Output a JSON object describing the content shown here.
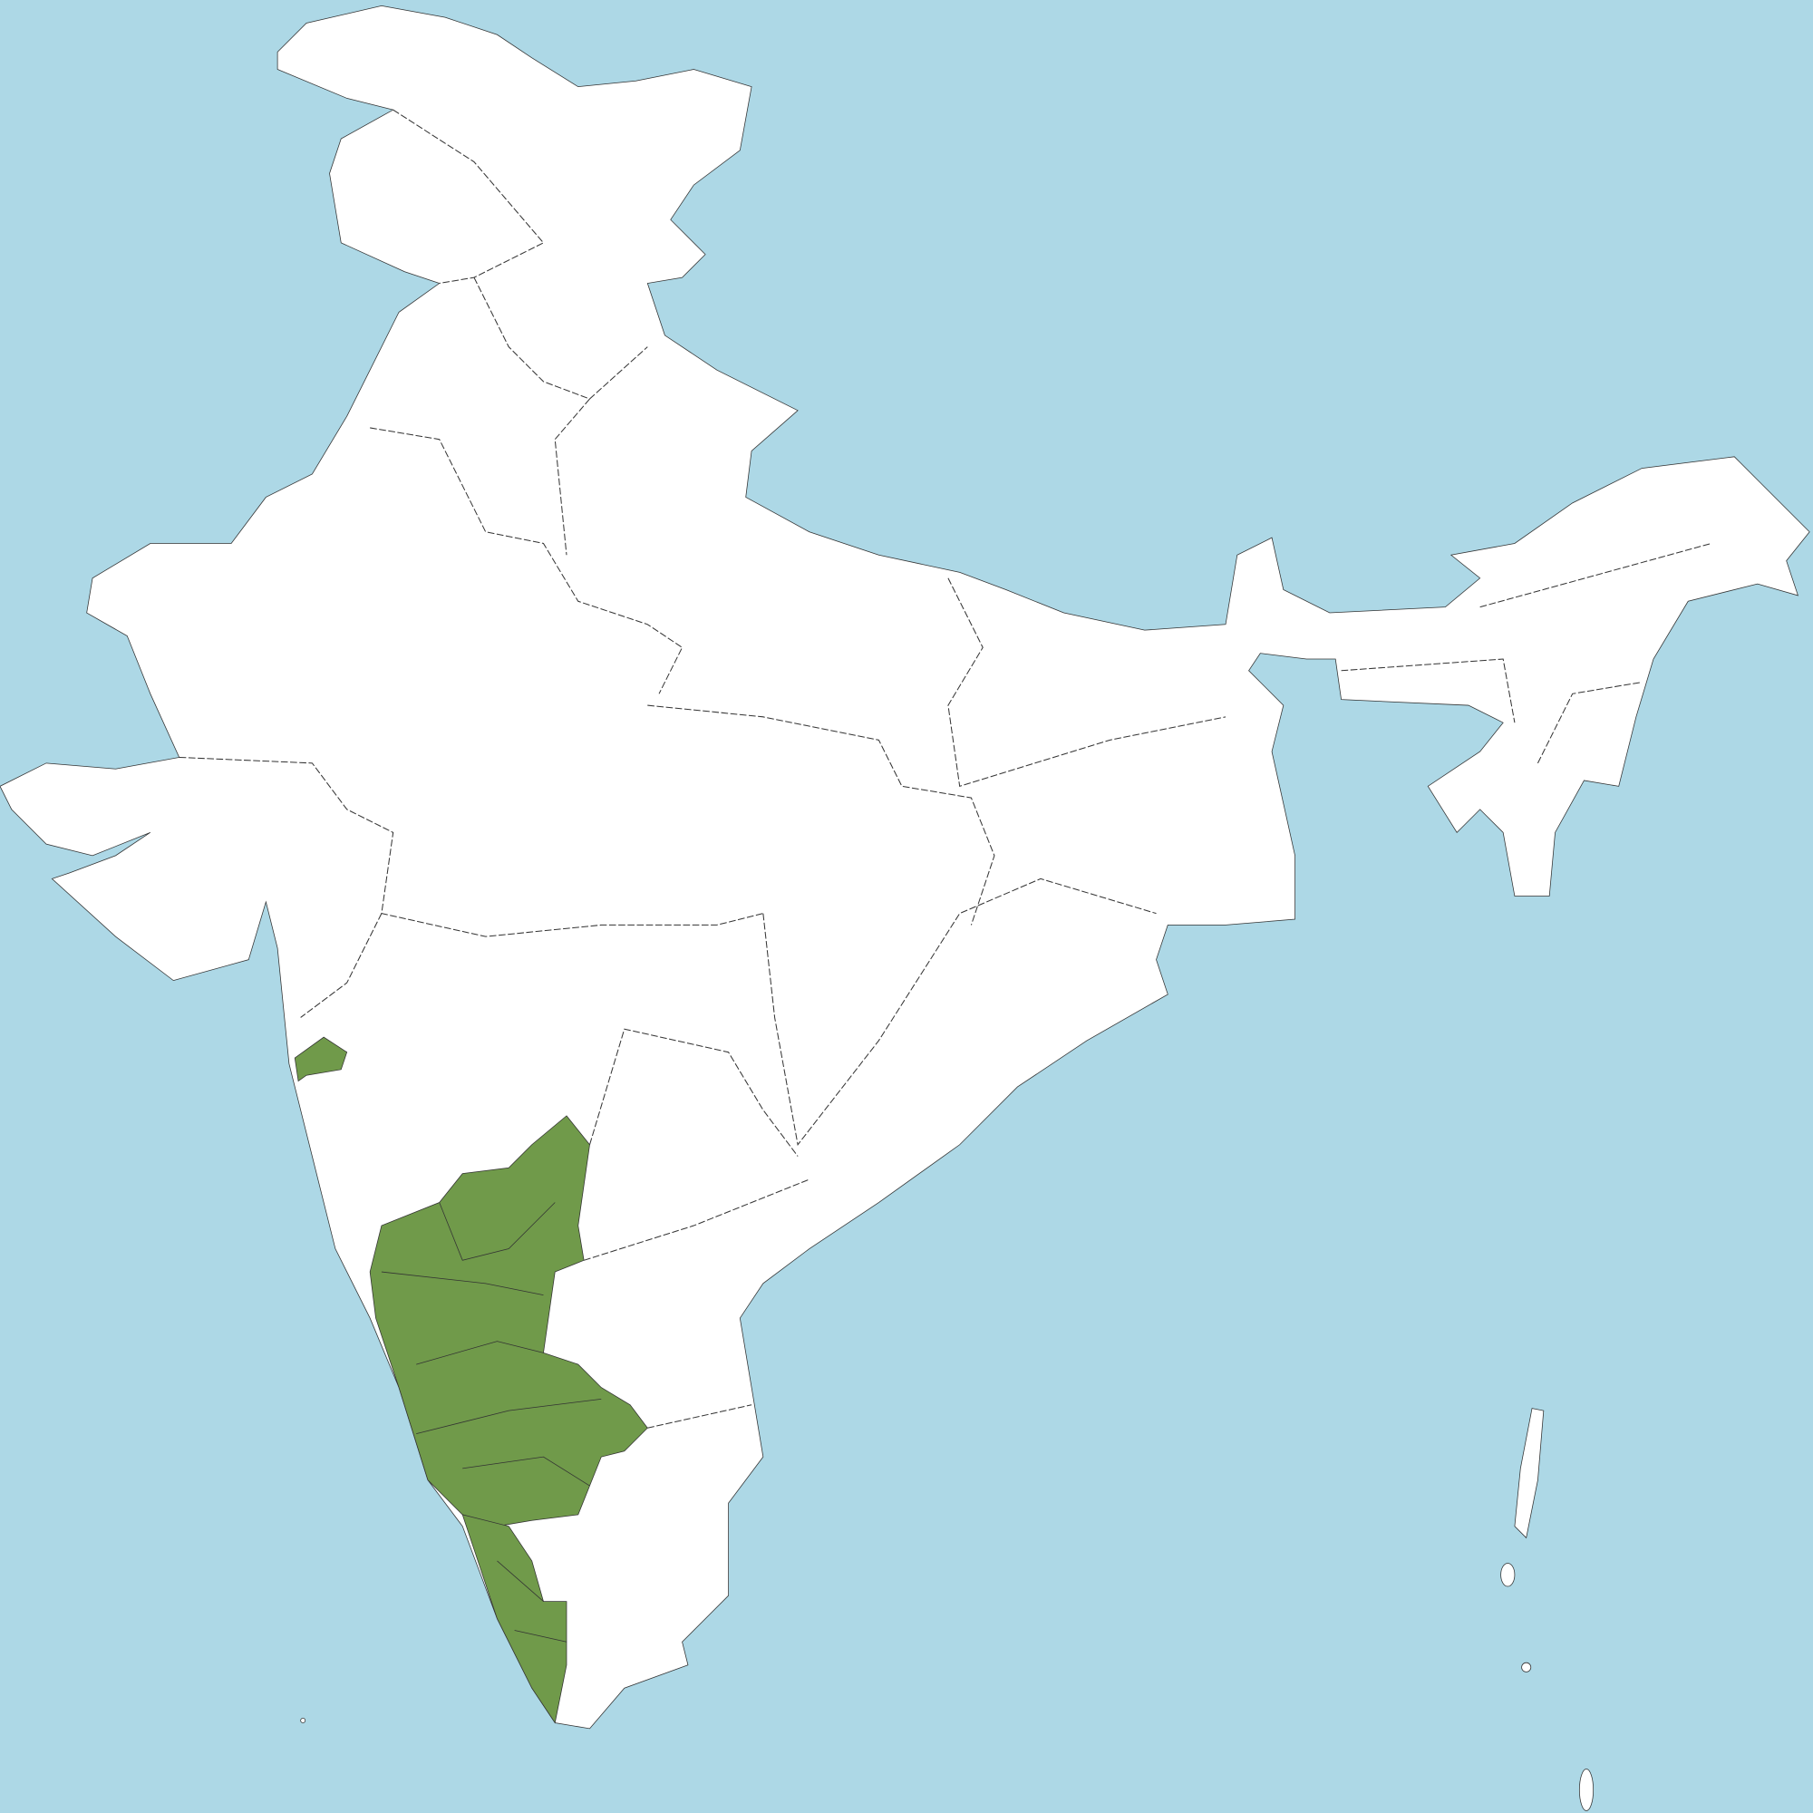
{
  "map": {
    "colors": {
      "sea": "#add8e6",
      "land": "#ffffff",
      "highlight": "#709a4a",
      "border": "#333333"
    }
  }
}
